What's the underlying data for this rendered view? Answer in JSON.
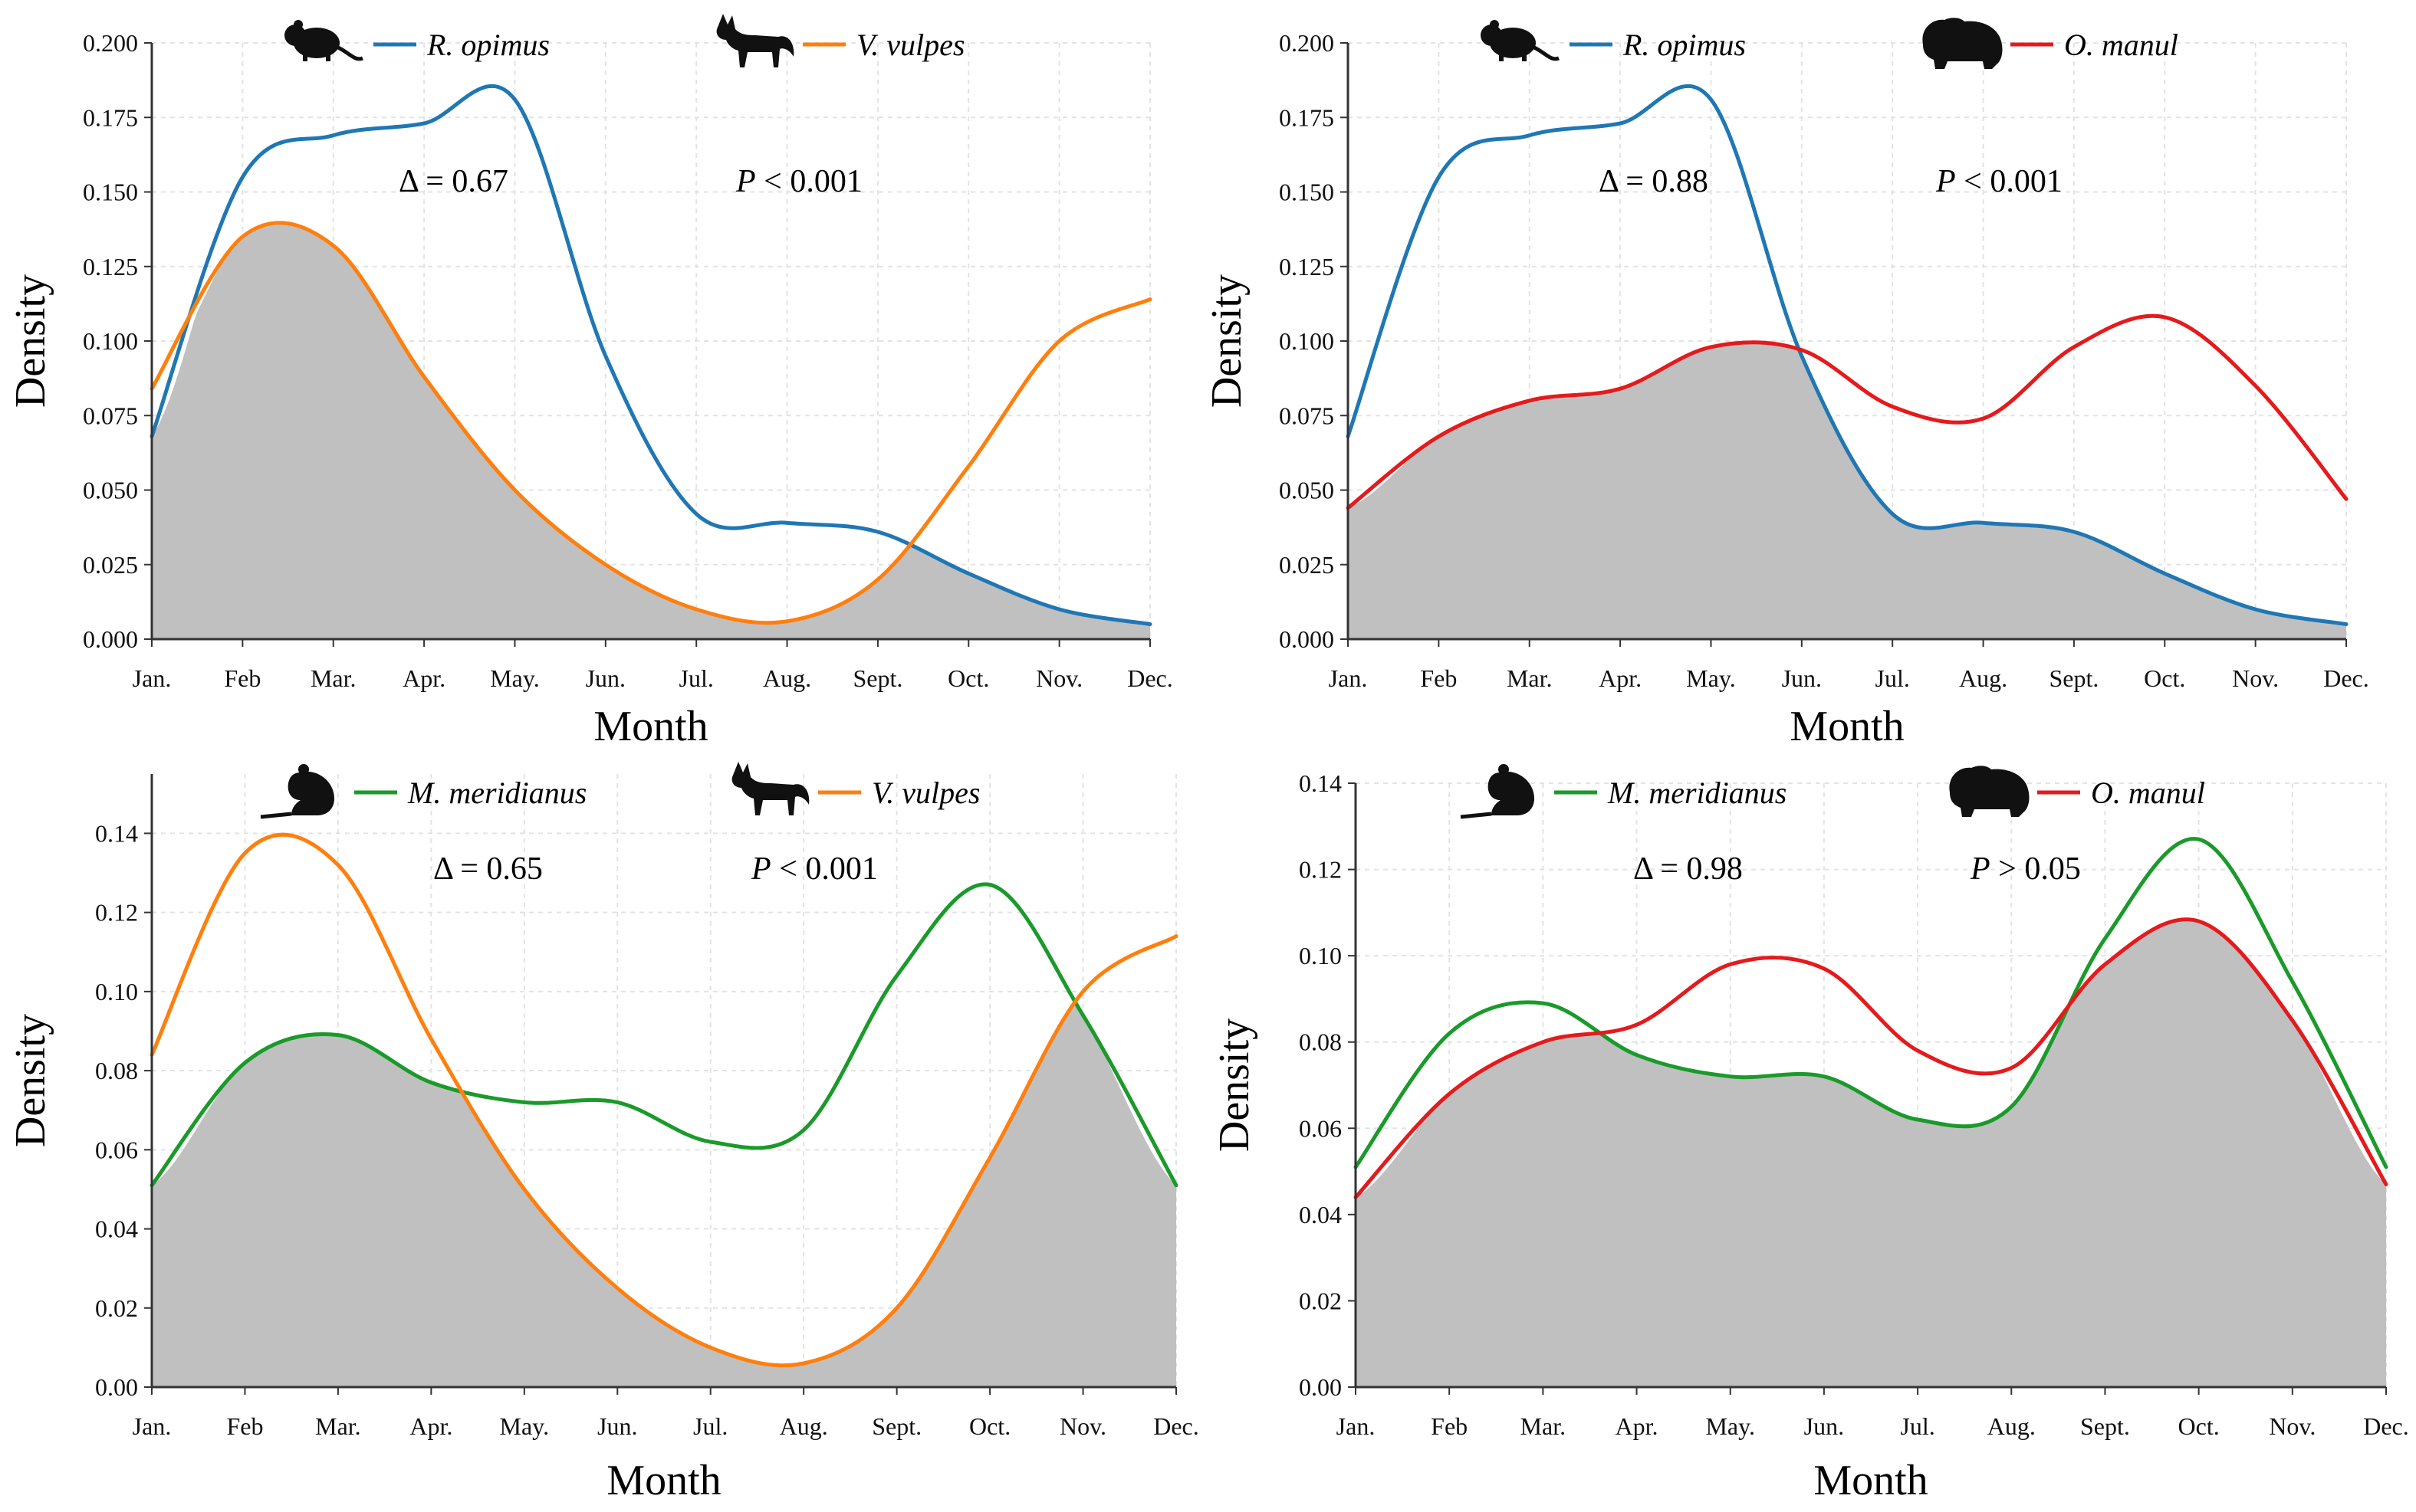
{
  "figure": {
    "description_free": true
  },
  "colors": {
    "r_opimus": "#1f77b4",
    "v_vulpes": "#ff7f0e",
    "o_manul": "#e41a1c",
    "m_meridianus": "#1a9a2a",
    "overlap_fill": "#c0c0c0",
    "grid": "#e3e3e3",
    "axis": "#333333",
    "silhouette": "#111111"
  },
  "chart_data": [
    {
      "type": "line",
      "panel": "top-left",
      "xlabel": "Month",
      "ylabel": "Density",
      "ylim": [
        0,
        0.2
      ],
      "yticks": [
        0.0,
        0.025,
        0.05,
        0.075,
        0.1,
        0.125,
        0.15,
        0.175,
        0.2
      ],
      "ytick_labels": [
        "0.000",
        "0.025",
        "0.050",
        "0.075",
        "0.100",
        "0.125",
        "0.150",
        "0.175",
        "0.200"
      ],
      "categories": [
        "Jan.",
        "Feb",
        "Mar.",
        "Apr.",
        "May.",
        "Jun.",
        "Jul.",
        "Aug.",
        "Sept.",
        "Oct.",
        "Nov.",
        "Dec."
      ],
      "grid": true,
      "legend_position": "top",
      "annotation_delta": "Δ = 0.67",
      "annotation_p_symbol": "P",
      "annotation_p_rest": " < 0.001",
      "series": [
        {
          "name": "R. opimus",
          "icon": "gerbil-icon",
          "color_key": "r_opimus",
          "values": [
            0.068,
            0.155,
            0.169,
            0.173,
            0.181,
            0.095,
            0.042,
            0.039,
            0.036,
            0.022,
            0.01,
            0.005
          ]
        },
        {
          "name": "V. vulpes",
          "icon": "fox-icon",
          "color_key": "v_vulpes",
          "values": [
            0.084,
            0.135,
            0.132,
            0.088,
            0.05,
            0.025,
            0.01,
            0.006,
            0.02,
            0.058,
            0.1,
            0.114
          ]
        }
      ]
    },
    {
      "type": "line",
      "panel": "top-right",
      "xlabel": "Month",
      "ylabel": "Density",
      "ylim": [
        0,
        0.2
      ],
      "yticks": [
        0.0,
        0.025,
        0.05,
        0.075,
        0.1,
        0.125,
        0.15,
        0.175,
        0.2
      ],
      "ytick_labels": [
        "0.000",
        "0.025",
        "0.050",
        "0.075",
        "0.100",
        "0.125",
        "0.150",
        "0.175",
        "0.200"
      ],
      "categories": [
        "Jan.",
        "Feb",
        "Mar.",
        "Apr.",
        "May.",
        "Jun.",
        "Jul.",
        "Aug.",
        "Sept.",
        "Oct.",
        "Nov.",
        "Dec."
      ],
      "grid": true,
      "legend_position": "top",
      "annotation_delta": "Δ = 0.88",
      "annotation_p_symbol": "P",
      "annotation_p_rest": " < 0.001",
      "series": [
        {
          "name": "R. opimus",
          "icon": "gerbil-icon",
          "color_key": "r_opimus",
          "values": [
            0.068,
            0.155,
            0.169,
            0.173,
            0.181,
            0.095,
            0.042,
            0.039,
            0.036,
            0.022,
            0.01,
            0.005
          ]
        },
        {
          "name": "O. manul",
          "icon": "manul-icon",
          "color_key": "o_manul",
          "values": [
            0.044,
            0.068,
            0.08,
            0.084,
            0.098,
            0.097,
            0.078,
            0.074,
            0.098,
            0.108,
            0.085,
            0.047
          ]
        }
      ]
    },
    {
      "type": "line",
      "panel": "bottom-left",
      "xlabel": "Month",
      "ylabel": "Density",
      "ylim": [
        0,
        0.155
      ],
      "yticks": [
        0.0,
        0.02,
        0.04,
        0.06,
        0.08,
        0.1,
        0.12,
        0.14
      ],
      "ytick_labels": [
        "0.00",
        "0.02",
        "0.04",
        "0.06",
        "0.08",
        "0.10",
        "0.12",
        "0.14"
      ],
      "categories": [
        "Jan.",
        "Feb",
        "Mar.",
        "Apr.",
        "May.",
        "Jun.",
        "Jul.",
        "Aug.",
        "Sept.",
        "Oct.",
        "Nov.",
        "Dec."
      ],
      "grid": true,
      "legend_position": "top",
      "annotation_delta": "Δ = 0.65",
      "annotation_p_symbol": "P",
      "annotation_p_rest": " < 0.001",
      "series": [
        {
          "name": "M. meridianus",
          "icon": "jird-icon",
          "color_key": "m_meridianus",
          "values": [
            0.051,
            0.082,
            0.089,
            0.077,
            0.072,
            0.072,
            0.062,
            0.065,
            0.104,
            0.127,
            0.094,
            0.051
          ]
        },
        {
          "name": "V. vulpes",
          "icon": "fox-icon",
          "color_key": "v_vulpes",
          "values": [
            0.084,
            0.135,
            0.132,
            0.088,
            0.05,
            0.025,
            0.01,
            0.006,
            0.02,
            0.058,
            0.1,
            0.114
          ]
        }
      ]
    },
    {
      "type": "line",
      "panel": "bottom-right",
      "xlabel": "Month",
      "ylabel": "Density",
      "ylim": [
        0,
        0.14
      ],
      "yticks": [
        0.0,
        0.02,
        0.04,
        0.06,
        0.08,
        0.1,
        0.12,
        0.14
      ],
      "ytick_labels": [
        "0.00",
        "0.02",
        "0.04",
        "0.06",
        "0.08",
        "0.10",
        "0.12",
        "0.14"
      ],
      "categories": [
        "Jan.",
        "Feb",
        "Mar.",
        "Apr.",
        "May.",
        "Jun.",
        "Jul.",
        "Aug.",
        "Sept.",
        "Oct.",
        "Nov.",
        "Dec."
      ],
      "grid": true,
      "legend_position": "top",
      "annotation_delta": "Δ = 0.98",
      "annotation_p_symbol": "P",
      "annotation_p_rest": " > 0.05",
      "series": [
        {
          "name": "M. meridianus",
          "icon": "jird-icon",
          "color_key": "m_meridianus",
          "values": [
            0.051,
            0.082,
            0.089,
            0.077,
            0.072,
            0.072,
            0.062,
            0.065,
            0.104,
            0.127,
            0.094,
            0.051
          ]
        },
        {
          "name": "O. manul",
          "icon": "manul-icon",
          "color_key": "o_manul",
          "values": [
            0.044,
            0.068,
            0.08,
            0.084,
            0.098,
            0.097,
            0.078,
            0.074,
            0.098,
            0.108,
            0.085,
            0.047
          ]
        }
      ]
    }
  ]
}
